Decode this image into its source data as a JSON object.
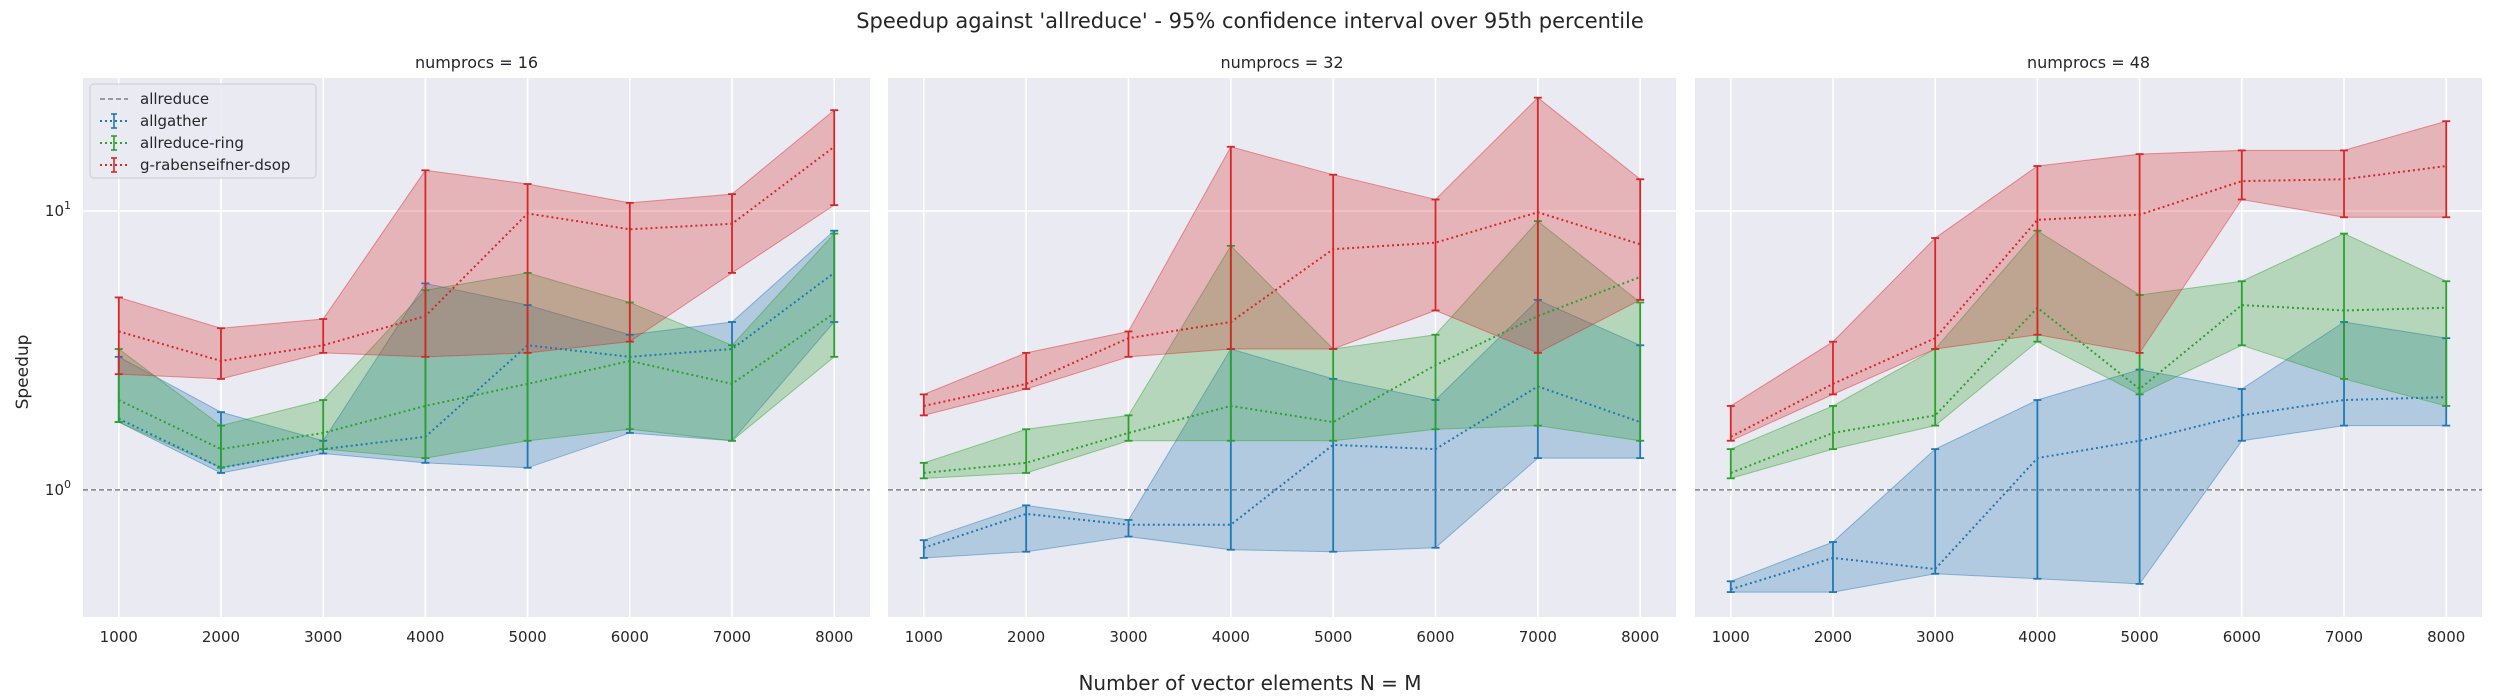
{
  "figure": {
    "title": "Speedup against 'allreduce' - 95% confidence interval over 95th percentile",
    "xlabel": "Number of vector elements N = M",
    "ylabel": "Speedup"
  },
  "colors": {
    "allreduce": "#808080",
    "allgather": "#1f77b4",
    "allreduce-ring": "#2ca02c",
    "g-rabenseifner-dsop": "#d62728",
    "panel_bg": "#eaeaf2",
    "grid": "#ffffff"
  },
  "legend": {
    "location": "upper-left of first panel",
    "entries": [
      "allreduce",
      "allgather",
      "allreduce-ring",
      "g-rabenseifner-dsop"
    ]
  },
  "chart_data": [
    {
      "type": "line",
      "title": "numprocs = 16",
      "x": [
        1000,
        2000,
        3000,
        4000,
        5000,
        6000,
        7000,
        8000
      ],
      "y_scale": "log",
      "ylim": [
        0.35,
        30
      ],
      "xlim": [
        650,
        8350
      ],
      "y_ticks": [
        {
          "value": 1,
          "label": "10^0"
        },
        {
          "value": 10,
          "label": "10^1"
        }
      ],
      "baseline": {
        "name": "allreduce",
        "value": 1.0
      },
      "series": [
        {
          "name": "allgather",
          "values": [
            1.8,
            1.2,
            1.4,
            1.55,
            3.3,
            3.0,
            3.2,
            6.0
          ],
          "lower": [
            1.75,
            1.15,
            1.35,
            1.25,
            1.2,
            1.6,
            1.5,
            4.0
          ],
          "upper": [
            3.0,
            1.9,
            1.5,
            5.5,
            4.6,
            3.6,
            4.0,
            8.5
          ]
        },
        {
          "name": "allreduce-ring",
          "values": [
            2.1,
            1.4,
            1.6,
            2.0,
            2.4,
            2.9,
            2.4,
            4.3
          ],
          "lower": [
            1.75,
            1.2,
            1.4,
            1.3,
            1.5,
            1.65,
            1.5,
            3.0
          ],
          "upper": [
            3.2,
            1.7,
            2.1,
            5.2,
            6.0,
            4.7,
            3.3,
            8.3
          ]
        },
        {
          "name": "g-rabenseifner-dsop",
          "values": [
            3.7,
            2.9,
            3.3,
            4.2,
            9.8,
            8.6,
            9.0,
            17.0
          ],
          "lower": [
            2.6,
            2.5,
            3.1,
            3.0,
            3.1,
            3.4,
            6.0,
            10.5
          ],
          "upper": [
            4.9,
            3.8,
            4.1,
            14.0,
            12.5,
            10.7,
            11.5,
            23.0
          ]
        }
      ]
    },
    {
      "type": "line",
      "title": "numprocs = 32",
      "x": [
        1000,
        2000,
        3000,
        4000,
        5000,
        6000,
        7000,
        8000
      ],
      "y_scale": "log",
      "ylim": [
        0.35,
        30
      ],
      "xlim": [
        650,
        8350
      ],
      "baseline": {
        "name": "allreduce",
        "value": 1.0
      },
      "series": [
        {
          "name": "allgather",
          "values": [
            0.62,
            0.82,
            0.75,
            0.75,
            1.45,
            1.4,
            2.35,
            1.75
          ],
          "lower": [
            0.57,
            0.6,
            0.68,
            0.61,
            0.6,
            0.62,
            1.3,
            1.3
          ],
          "upper": [
            0.66,
            0.88,
            0.78,
            3.2,
            2.5,
            2.1,
            4.8,
            3.3
          ]
        },
        {
          "name": "allreduce-ring",
          "values": [
            1.15,
            1.25,
            1.6,
            2.0,
            1.75,
            2.8,
            4.2,
            5.8
          ],
          "lower": [
            1.1,
            1.15,
            1.5,
            1.5,
            1.5,
            1.65,
            1.7,
            1.5
          ],
          "upper": [
            1.25,
            1.65,
            1.85,
            7.5,
            3.2,
            3.6,
            9.2,
            4.7
          ]
        },
        {
          "name": "g-rabenseifner-dsop",
          "values": [
            2.0,
            2.4,
            3.5,
            4.0,
            7.3,
            7.7,
            9.9,
            7.6
          ],
          "lower": [
            1.85,
            2.3,
            3.0,
            3.2,
            3.2,
            4.4,
            3.1,
            4.8
          ],
          "upper": [
            2.2,
            3.1,
            3.7,
            17.0,
            13.5,
            11.0,
            25.5,
            13.0
          ]
        }
      ]
    },
    {
      "type": "line",
      "title": "numprocs = 48",
      "x": [
        1000,
        2000,
        3000,
        4000,
        5000,
        6000,
        7000,
        8000
      ],
      "y_scale": "log",
      "ylim": [
        0.35,
        30
      ],
      "xlim": [
        650,
        8350
      ],
      "baseline": {
        "name": "allreduce",
        "value": 1.0
      },
      "series": [
        {
          "name": "allgather",
          "values": [
            0.44,
            0.57,
            0.52,
            1.3,
            1.5,
            1.85,
            2.1,
            2.15
          ],
          "lower": [
            0.43,
            0.43,
            0.5,
            0.48,
            0.46,
            1.5,
            1.7,
            1.7
          ],
          "upper": [
            0.47,
            0.65,
            1.4,
            2.1,
            2.7,
            2.3,
            4.0,
            3.5
          ]
        },
        {
          "name": "allreduce-ring",
          "values": [
            1.15,
            1.6,
            1.85,
            4.5,
            2.3,
            4.6,
            4.4,
            4.5
          ],
          "lower": [
            1.1,
            1.4,
            1.7,
            3.4,
            2.2,
            3.3,
            2.5,
            2.0
          ],
          "upper": [
            1.4,
            2.0,
            3.2,
            8.5,
            5.0,
            5.6,
            8.3,
            5.6
          ]
        },
        {
          "name": "g-rabenseifner-dsop",
          "values": [
            1.55,
            2.4,
            3.5,
            9.3,
            9.7,
            12.8,
            13.0,
            14.5
          ],
          "lower": [
            1.5,
            2.2,
            3.2,
            3.6,
            3.1,
            11.0,
            9.5,
            9.5
          ],
          "upper": [
            2.0,
            3.4,
            8.0,
            14.5,
            16.0,
            16.5,
            16.5,
            21.0
          ]
        }
      ]
    }
  ]
}
